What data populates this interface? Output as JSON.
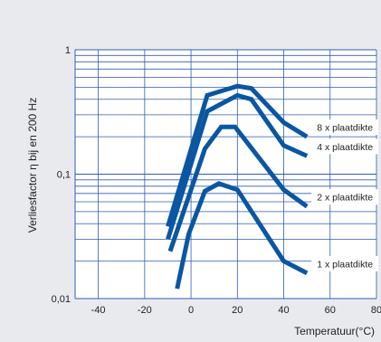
{
  "chart_data": {
    "type": "line",
    "title": "",
    "xlabel": "Temperatuur(°C)",
    "ylabel": "Verliesfactor η bij en 200 Hz",
    "x_ticks": [
      -40,
      -20,
      0,
      20,
      40,
      60,
      80
    ],
    "y_ticks": [
      {
        "value": 1,
        "label": "1"
      },
      {
        "value": 0.1,
        "label": "0,1"
      },
      {
        "value": 0.01,
        "label": "0,01"
      }
    ],
    "xlim": [
      -50,
      80
    ],
    "ylim": [
      0.01,
      1
    ],
    "yscale": "log",
    "grid": true,
    "colors": {
      "background": "#e9eaee",
      "plot_area": "#ffffff",
      "grid": "#2f5db3",
      "series": "#0a56a2",
      "label_box": "#ffffff"
    },
    "series": [
      {
        "name": "8 x plaatdikte",
        "x": [
          -10,
          7,
          20,
          26,
          40,
          50
        ],
        "y": [
          0.038,
          0.43,
          0.51,
          0.49,
          0.26,
          0.2
        ]
      },
      {
        "name": "4 x plaatdikte",
        "x": [
          -10,
          7,
          20,
          26,
          40,
          50
        ],
        "y": [
          0.03,
          0.32,
          0.43,
          0.4,
          0.17,
          0.14
        ]
      },
      {
        "name": "2 x plaatdikte",
        "x": [
          -9,
          6,
          13,
          19,
          40,
          50
        ],
        "y": [
          0.024,
          0.16,
          0.24,
          0.24,
          0.075,
          0.055
        ]
      },
      {
        "name": "1 x plaatdikte",
        "x": [
          -6,
          -1,
          6,
          12,
          20,
          40,
          50
        ],
        "y": [
          0.012,
          0.033,
          0.073,
          0.084,
          0.075,
          0.02,
          0.016
        ]
      }
    ]
  }
}
